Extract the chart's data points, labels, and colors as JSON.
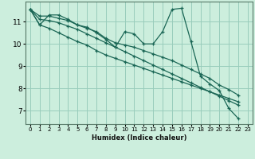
{
  "xlabel": "Humidex (Indice chaleur)",
  "background_color": "#cceedd",
  "grid_color": "#99ccbb",
  "line_color": "#1a6655",
  "xlim": [
    -0.5,
    23.5
  ],
  "ylim": [
    6.4,
    11.9
  ],
  "x_ticks": [
    0,
    1,
    2,
    3,
    4,
    5,
    6,
    7,
    8,
    9,
    10,
    11,
    12,
    13,
    14,
    15,
    16,
    17,
    18,
    19,
    20,
    21,
    22,
    23
  ],
  "y_ticks": [
    7,
    8,
    9,
    10,
    11
  ],
  "lines": [
    [
      11.55,
      10.85,
      11.3,
      11.3,
      11.1,
      10.85,
      10.75,
      10.5,
      10.2,
      9.85,
      10.55,
      10.45,
      10.0,
      10.0,
      10.55,
      11.55,
      11.6,
      10.1,
      8.55,
      8.2,
      7.9,
      7.1,
      6.65
    ],
    [
      11.55,
      10.85,
      10.7,
      10.5,
      10.3,
      10.1,
      9.95,
      9.7,
      9.5,
      9.35,
      9.2,
      9.05,
      8.9,
      8.75,
      8.6,
      8.45,
      8.3,
      8.15,
      8.0,
      7.85,
      7.7,
      7.55,
      7.4
    ],
    [
      11.55,
      11.25,
      11.25,
      11.15,
      11.05,
      10.85,
      10.7,
      10.55,
      10.25,
      10.05,
      9.95,
      9.85,
      9.7,
      9.55,
      9.4,
      9.25,
      9.05,
      8.85,
      8.65,
      8.45,
      8.15,
      7.95,
      7.7
    ],
    [
      11.55,
      11.1,
      11.05,
      10.95,
      10.8,
      10.65,
      10.45,
      10.25,
      10.05,
      9.85,
      9.65,
      9.45,
      9.25,
      9.05,
      8.85,
      8.65,
      8.45,
      8.25,
      8.05,
      7.85,
      7.65,
      7.45,
      7.25
    ]
  ]
}
